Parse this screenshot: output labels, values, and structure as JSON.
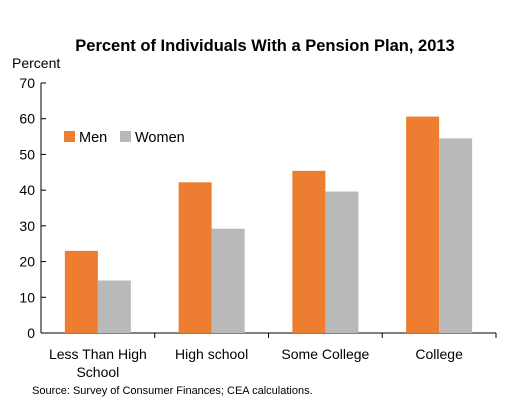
{
  "chart_data": {
    "type": "bar",
    "title": "Percent of Individuals With a Pension Plan, 2013",
    "ylabel": "Percent",
    "xlabel": "",
    "categories": [
      "Less Than High School",
      "High school",
      "Some College",
      "College"
    ],
    "category_lines": [
      [
        "Less Than High",
        "School"
      ],
      [
        "High school"
      ],
      [
        "Some College"
      ],
      [
        "College"
      ]
    ],
    "series": [
      {
        "name": "Men",
        "values": [
          23,
          42.2,
          45.4,
          60.6
        ],
        "color": "#ED7D31"
      },
      {
        "name": "Women",
        "values": [
          14.7,
          29.2,
          39.6,
          54.5
        ],
        "color": "#B9B9B9"
      }
    ],
    "ylim": [
      0,
      70
    ],
    "yticks": [
      0,
      10,
      20,
      30,
      40,
      50,
      60,
      70
    ],
    "grid": false,
    "legend": "top-left",
    "source": "Source: Survey of Consumer Finances; CEA calculations."
  }
}
